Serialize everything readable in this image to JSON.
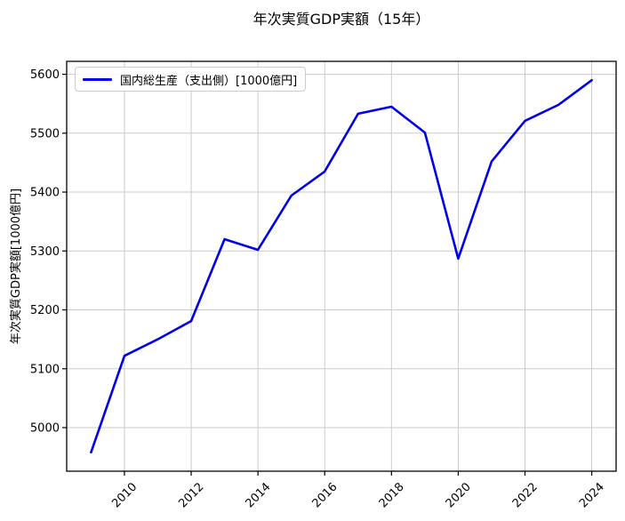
{
  "title": "年次実質GDP実額（15年）",
  "axes": {
    "ylabel": "年次実質GDP実額[1000億円]"
  },
  "legend": {
    "label": "国内総生産（支出側）[1000億円]"
  },
  "colors": {
    "line": "#0000ee",
    "grid": "#cbcbcb",
    "spine": "#000000",
    "text": "#000000",
    "background": "#ffffff"
  },
  "chart_data": {
    "type": "line",
    "title": "年次実質GDP実額（15年）",
    "xlabel": "",
    "ylabel": "年次実質GDP実額[1000億円]",
    "series": [
      {
        "name": "国内総生産（支出側）[1000億円]",
        "color": "#0000ee",
        "x": [
          2009,
          2010,
          2011,
          2012,
          2013,
          2014,
          2015,
          2016,
          2017,
          2018,
          2019,
          2020,
          2021,
          2022,
          2023,
          2024
        ],
        "values": [
          4958,
          5122,
          5150,
          5181,
          5320,
          5302,
          5394,
          5435,
          5533,
          5545,
          5501,
          5287,
          5452,
          5521,
          5548,
          5590
        ]
      }
    ],
    "x_ticks": [
      2010,
      2012,
      2014,
      2016,
      2018,
      2020,
      2022,
      2024
    ],
    "y_ticks": [
      5000,
      5100,
      5200,
      5300,
      5400,
      5500,
      5600
    ],
    "xlim": [
      2008.27,
      2024.73
    ],
    "ylim": [
      4926,
      5622
    ],
    "grid": true,
    "grid_color": "#cbcbcb",
    "legend_position": "upper left",
    "x_tick_rotation_deg": 45
  }
}
